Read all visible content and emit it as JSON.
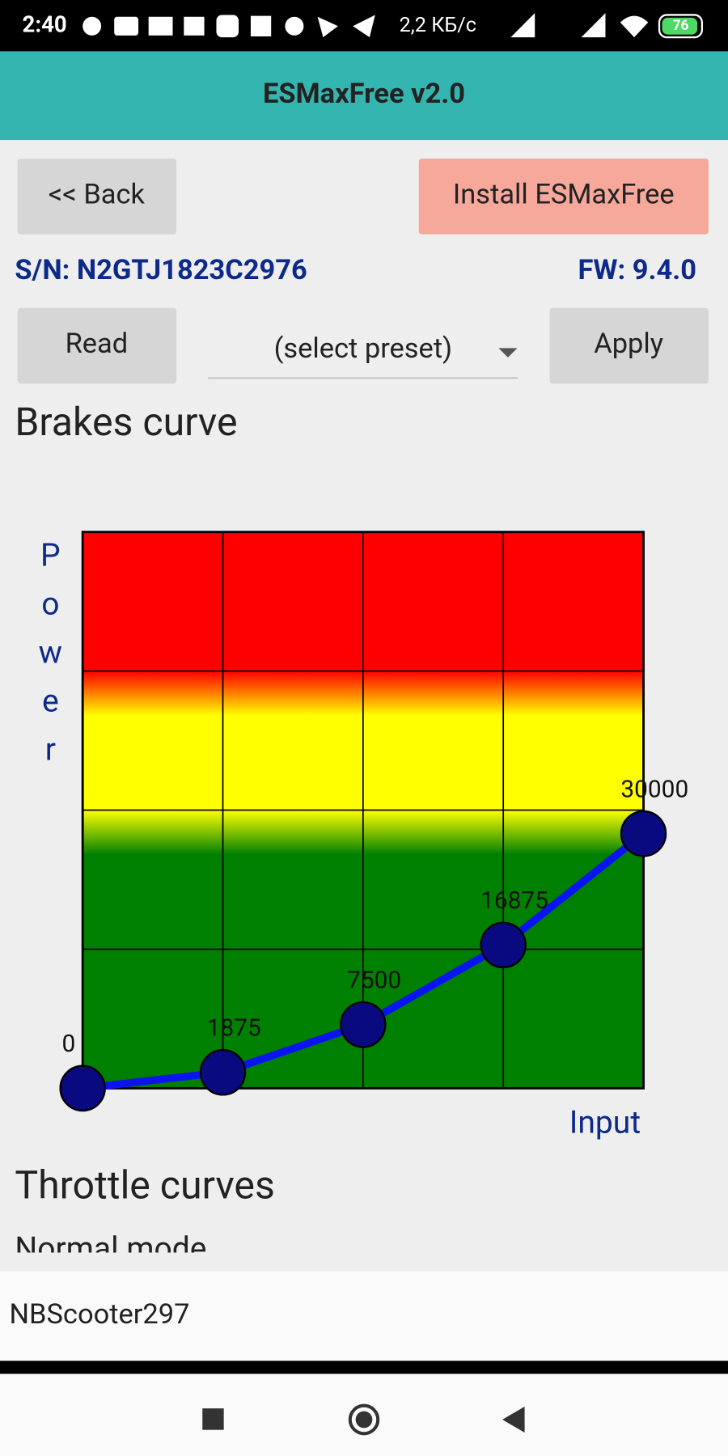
{
  "status_bar": {
    "time": "2:40",
    "speed": "2,2 КБ/с",
    "battery": "76"
  },
  "app_bar": {
    "title": "ESMaxFree v2.0"
  },
  "buttons": {
    "back": "<< Back",
    "install": "Install ESMaxFree",
    "read": "Read",
    "apply": "Apply"
  },
  "device": {
    "serial": "S/N: N2GTJ1823C2976",
    "firmware": "FW: 9.4.0"
  },
  "preset_select": "(select preset)",
  "brakes_curve": {
    "title": "Brakes curve",
    "y_label": "Power",
    "x_label": "Input",
    "values": [
      0,
      1875,
      7500,
      16875,
      30000
    ],
    "ylim": [
      0,
      65535
    ],
    "line_color": "#0a14f0",
    "point_color": "#0a0a80"
  },
  "throttle_section": {
    "title": "Throttle curves",
    "subtitle": "Normal mode"
  },
  "device_name": "NBScooter297"
}
